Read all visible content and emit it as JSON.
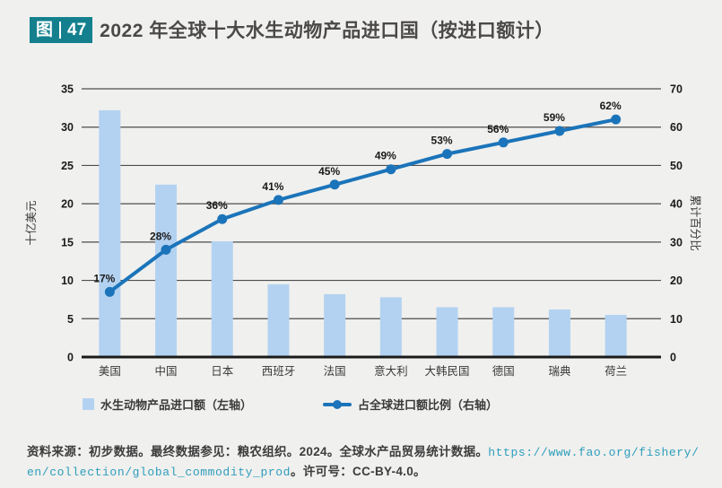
{
  "header": {
    "badge_prefix": "图",
    "badge_number": "47",
    "title": "2022 年全球十大水生动物产品进口国（按进口额计）"
  },
  "chart_data": {
    "type": "bar+line (pareto combo)",
    "categories": [
      "美国",
      "中国",
      "日本",
      "西班牙",
      "法国",
      "意大利",
      "大韩民国",
      "德国",
      "瑞典",
      "荷兰"
    ],
    "series": [
      {
        "name": "水生动物产品进口额（左轴）",
        "type": "bar",
        "axis": "left",
        "values": [
          32.2,
          22.5,
          15.1,
          9.5,
          8.2,
          7.8,
          6.5,
          6.5,
          6.2,
          5.5
        ],
        "color": "#b3d2f1"
      },
      {
        "name": "占全球进口额比例（右轴）",
        "type": "line",
        "axis": "right",
        "values": [
          17,
          28,
          36,
          41,
          45,
          49,
          53,
          56,
          59,
          62
        ],
        "point_labels": [
          "17%",
          "28%",
          "36%",
          "41%",
          "45%",
          "49%",
          "53%",
          "56%",
          "59%",
          "62%"
        ],
        "color": "#1b74ba"
      }
    ],
    "left_axis": {
      "label": "十亿美元",
      "min": 0,
      "max": 35,
      "step": 5
    },
    "right_axis": {
      "label": "累计百分比",
      "min": 0,
      "max": 70,
      "step": 10
    },
    "grid": true,
    "legend_position": "bottom"
  },
  "legend": {
    "bar_label": "水生动物产品进口额（左轴）",
    "line_label": "占全球进口额比例（右轴）"
  },
  "footer": {
    "source_prefix": "资料来源：初步数据。最终数据参见：粮农组织。2024。全球水产品贸易统计数据。",
    "link_text": "https://www.fao.org/fishery/en/collection/global_commodity_prod",
    "source_suffix": "。许可号：CC-BY-4.0。"
  },
  "colors": {
    "page_background": "#f0f0ee",
    "badge_background": "#14808e",
    "title_text": "#4b4947",
    "bar_fill": "#b3d2f1",
    "line_stroke": "#1b74ba",
    "grid_line": "#4d4d4d",
    "axis_line": "#1a1a1a",
    "tick_text": "#1a1a1a",
    "category_text": "#3a3a3a",
    "link_text": "#2d9dbc",
    "footer_text": "#3c3c3c"
  }
}
